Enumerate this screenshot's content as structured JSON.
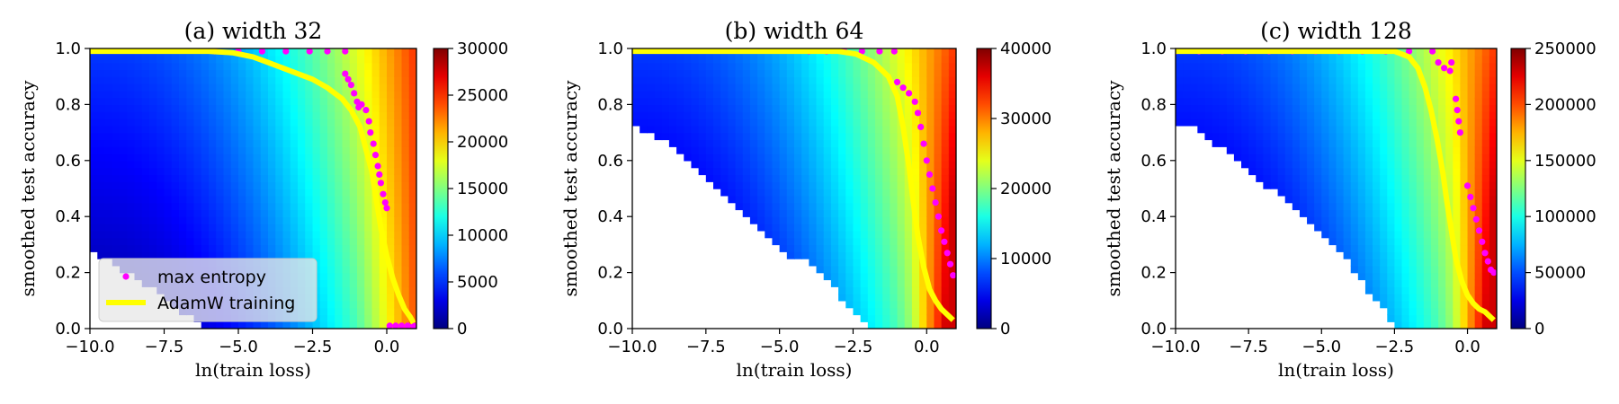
{
  "figure": {
    "panels": [
      {
        "title": "(a) width 32",
        "xlabel": "ln(train loss)",
        "ylabel": "smoothed test accuracy",
        "xlim": [
          -10.0,
          1.0
        ],
        "ylim": [
          0.0,
          1.0
        ],
        "xticks": [
          "−10.0",
          "−7.5",
          "−5.0",
          "−2.5",
          "0.0"
        ],
        "xtick_values": [
          -10.0,
          -7.5,
          -5.0,
          -2.5,
          0.0
        ],
        "yticks": [
          "0.0",
          "0.2",
          "0.4",
          "0.6",
          "0.8",
          "1.0"
        ],
        "ytick_values": [
          0.0,
          0.2,
          0.4,
          0.6,
          0.8,
          1.0
        ],
        "colorbar": {
          "min": 0,
          "max": 30000,
          "ticks": [
            "0",
            "5000",
            "10000",
            "15000",
            "20000",
            "25000",
            "30000"
          ],
          "tick_values": [
            0,
            5000,
            10000,
            15000,
            20000,
            25000,
            30000
          ]
        },
        "legend": {
          "placement": "lower-left",
          "entries": [
            "max entropy",
            "AdamW training"
          ]
        }
      },
      {
        "title": "(b) width 64",
        "xlabel": "ln(train loss)",
        "ylabel": "smoothed test accuracy",
        "xlim": [
          -10.0,
          1.0
        ],
        "ylim": [
          0.0,
          1.0
        ],
        "xticks": [
          "−10.0",
          "−7.5",
          "−5.0",
          "−2.5",
          "0.0"
        ],
        "xtick_values": [
          -10.0,
          -7.5,
          -5.0,
          -2.5,
          0.0
        ],
        "yticks": [
          "0.0",
          "0.2",
          "0.4",
          "0.6",
          "0.8",
          "1.0"
        ],
        "ytick_values": [
          0.0,
          0.2,
          0.4,
          0.6,
          0.8,
          1.0
        ],
        "colorbar": {
          "min": 0,
          "max": 40000,
          "ticks": [
            "0",
            "10000",
            "20000",
            "30000",
            "40000"
          ],
          "tick_values": [
            0,
            10000,
            20000,
            30000,
            40000
          ]
        }
      },
      {
        "title": "(c) width 128",
        "xlabel": "ln(train loss)",
        "ylabel": "smoothed test accuracy",
        "xlim": [
          -10.0,
          1.0
        ],
        "ylim": [
          0.0,
          1.0
        ],
        "xticks": [
          "−10.0",
          "−7.5",
          "−5.0",
          "−2.5",
          "0.0"
        ],
        "xtick_values": [
          -10.0,
          -7.5,
          -5.0,
          -2.5,
          0.0
        ],
        "yticks": [
          "0.0",
          "0.2",
          "0.4",
          "0.6",
          "0.8",
          "1.0"
        ],
        "ytick_values": [
          0.0,
          0.2,
          0.4,
          0.6,
          0.8,
          1.0
        ],
        "colorbar": {
          "min": 0,
          "max": 250000,
          "ticks": [
            "0",
            "50000",
            "100000",
            "150000",
            "200000",
            "250000"
          ],
          "tick_values": [
            0,
            50000,
            100000,
            150000,
            200000,
            250000
          ]
        }
      }
    ],
    "colors": {
      "max_entropy": "#ff00ff",
      "adamw": "#ffff00",
      "colormap": "jet"
    }
  },
  "chart_data": [
    {
      "type": "heatmap",
      "title": "(a) width 32",
      "xlabel": "ln(train loss)",
      "ylabel": "smoothed test accuracy",
      "xlim": [
        -10.0,
        1.0
      ],
      "ylim": [
        0.0,
        1.0
      ],
      "colorbar_range": [
        0,
        30000
      ],
      "coverage_boundary": [
        [
          -10.0,
          0.28
        ],
        [
          -8.0,
          0.15
        ],
        [
          -6.5,
          0.03
        ],
        [
          -6.0,
          0.0
        ]
      ],
      "series": [
        {
          "name": "max entropy",
          "kind": "scatter",
          "points": [
            [
              -5.8,
              0.99
            ],
            [
              -5.0,
              0.99
            ],
            [
              -4.2,
              0.99
            ],
            [
              -3.4,
              0.99
            ],
            [
              -2.6,
              0.99
            ],
            [
              -2.0,
              0.99
            ],
            [
              -1.4,
              0.99
            ],
            [
              -1.4,
              0.91
            ],
            [
              -1.3,
              0.89
            ],
            [
              -1.2,
              0.87
            ],
            [
              -1.1,
              0.84
            ],
            [
              -1.0,
              0.81
            ],
            [
              -0.95,
              0.79
            ],
            [
              -0.85,
              0.8
            ],
            [
              -0.7,
              0.78
            ],
            [
              -0.6,
              0.74
            ],
            [
              -0.55,
              0.7
            ],
            [
              -0.45,
              0.66
            ],
            [
              -0.38,
              0.62
            ],
            [
              -0.3,
              0.58
            ],
            [
              -0.25,
              0.55
            ],
            [
              -0.2,
              0.52
            ],
            [
              -0.12,
              0.48
            ],
            [
              -0.05,
              0.45
            ],
            [
              0.0,
              0.43
            ],
            [
              0.1,
              0.01
            ],
            [
              0.3,
              0.01
            ],
            [
              0.5,
              0.01
            ],
            [
              0.7,
              0.01
            ],
            [
              0.9,
              0.01
            ]
          ]
        },
        {
          "name": "AdamW training",
          "kind": "line",
          "points": [
            [
              -10.0,
              0.99
            ],
            [
              -6.0,
              0.99
            ],
            [
              -5.2,
              0.985
            ],
            [
              -4.5,
              0.97
            ],
            [
              -4.0,
              0.95
            ],
            [
              -3.5,
              0.93
            ],
            [
              -3.0,
              0.91
            ],
            [
              -2.5,
              0.89
            ],
            [
              -2.0,
              0.86
            ],
            [
              -1.5,
              0.82
            ],
            [
              -1.2,
              0.78
            ],
            [
              -0.9,
              0.72
            ],
            [
              -0.7,
              0.64
            ],
            [
              -0.5,
              0.56
            ],
            [
              -0.35,
              0.46
            ],
            [
              -0.2,
              0.36
            ],
            [
              0.0,
              0.26
            ],
            [
              0.2,
              0.18
            ],
            [
              0.4,
              0.12
            ],
            [
              0.6,
              0.07
            ],
            [
              0.8,
              0.04
            ],
            [
              0.9,
              0.02
            ]
          ]
        }
      ]
    },
    {
      "type": "heatmap",
      "title": "(b) width 64",
      "xlabel": "ln(train loss)",
      "ylabel": "smoothed test accuracy",
      "xlim": [
        -10.0,
        1.0
      ],
      "ylim": [
        0.0,
        1.0
      ],
      "colorbar_range": [
        0,
        40000
      ],
      "coverage_boundary": [
        [
          -10.0,
          0.73
        ],
        [
          -9.0,
          0.68
        ],
        [
          -8.0,
          0.59
        ],
        [
          -7.0,
          0.49
        ],
        [
          -6.0,
          0.38
        ],
        [
          -5.0,
          0.28
        ],
        [
          -4.5,
          0.25
        ],
        [
          -4.0,
          0.24
        ],
        [
          -3.5,
          0.2
        ],
        [
          -3.0,
          0.12
        ],
        [
          -2.5,
          0.05
        ],
        [
          -2.0,
          0.01
        ],
        [
          -1.6,
          0.0
        ]
      ],
      "series": [
        {
          "name": "max entropy",
          "kind": "scatter",
          "points": [
            [
              -4.0,
              0.99
            ],
            [
              -3.4,
              0.99
            ],
            [
              -2.8,
              0.99
            ],
            [
              -2.2,
              0.99
            ],
            [
              -1.6,
              0.99
            ],
            [
              -1.1,
              0.99
            ],
            [
              -1.0,
              0.88
            ],
            [
              -0.8,
              0.86
            ],
            [
              -0.6,
              0.84
            ],
            [
              -0.4,
              0.81
            ],
            [
              -0.3,
              0.77
            ],
            [
              -0.2,
              0.72
            ],
            [
              -0.1,
              0.66
            ],
            [
              0.0,
              0.6
            ],
            [
              0.1,
              0.55
            ],
            [
              0.2,
              0.5
            ],
            [
              0.3,
              0.45
            ],
            [
              0.4,
              0.4
            ],
            [
              0.5,
              0.35
            ],
            [
              0.6,
              0.31
            ],
            [
              0.7,
              0.27
            ],
            [
              0.8,
              0.23
            ],
            [
              0.9,
              0.19
            ]
          ]
        },
        {
          "name": "AdamW training",
          "kind": "line",
          "points": [
            [
              -10.0,
              0.99
            ],
            [
              -3.0,
              0.99
            ],
            [
              -2.4,
              0.98
            ],
            [
              -1.8,
              0.95
            ],
            [
              -1.3,
              0.9
            ],
            [
              -1.0,
              0.83
            ],
            [
              -0.8,
              0.72
            ],
            [
              -0.6,
              0.58
            ],
            [
              -0.45,
              0.45
            ],
            [
              -0.3,
              0.33
            ],
            [
              -0.1,
              0.22
            ],
            [
              0.1,
              0.14
            ],
            [
              0.3,
              0.1
            ],
            [
              0.5,
              0.07
            ],
            [
              0.7,
              0.05
            ],
            [
              0.9,
              0.03
            ]
          ]
        }
      ]
    },
    {
      "type": "heatmap",
      "title": "(c) width 128",
      "xlabel": "ln(train loss)",
      "ylabel": "smoothed test accuracy",
      "xlim": [
        -10.0,
        1.0
      ],
      "ylim": [
        0.0,
        1.0
      ],
      "colorbar_range": [
        0,
        250000
      ],
      "coverage_boundary": [
        [
          -10.0,
          0.74
        ],
        [
          -9.3,
          0.71
        ],
        [
          -8.5,
          0.65
        ],
        [
          -7.5,
          0.56
        ],
        [
          -6.5,
          0.48
        ],
        [
          -5.5,
          0.4
        ],
        [
          -4.5,
          0.3
        ],
        [
          -3.5,
          0.15
        ],
        [
          -3.0,
          0.08
        ],
        [
          -2.5,
          0.02
        ],
        [
          -2.2,
          0.0
        ]
      ],
      "series": [
        {
          "name": "max entropy",
          "kind": "scatter",
          "points": [
            [
              -10.0,
              0.99
            ],
            [
              -9.2,
              0.99
            ],
            [
              -8.4,
              0.99
            ],
            [
              -7.6,
              0.99
            ],
            [
              -6.8,
              0.99
            ],
            [
              -6.0,
              0.99
            ],
            [
              -5.2,
              0.99
            ],
            [
              -4.4,
              0.99
            ],
            [
              -3.6,
              0.99
            ],
            [
              -2.8,
              0.99
            ],
            [
              -2.0,
              0.99
            ],
            [
              -1.2,
              0.99
            ],
            [
              -1.0,
              0.95
            ],
            [
              -0.8,
              0.93
            ],
            [
              -0.6,
              0.92
            ],
            [
              -0.55,
              0.95
            ],
            [
              -0.4,
              0.82
            ],
            [
              -0.35,
              0.78
            ],
            [
              -0.3,
              0.74
            ],
            [
              -0.25,
              0.7
            ],
            [
              0.0,
              0.51
            ],
            [
              0.1,
              0.47
            ],
            [
              0.2,
              0.43
            ],
            [
              0.3,
              0.39
            ],
            [
              0.4,
              0.35
            ],
            [
              0.5,
              0.31
            ],
            [
              0.6,
              0.27
            ],
            [
              0.7,
              0.24
            ],
            [
              0.8,
              0.21
            ],
            [
              0.9,
              0.2
            ]
          ]
        },
        {
          "name": "AdamW training",
          "kind": "line",
          "points": [
            [
              -10.0,
              0.99
            ],
            [
              -2.5,
              0.99
            ],
            [
              -2.0,
              0.97
            ],
            [
              -1.7,
              0.93
            ],
            [
              -1.45,
              0.86
            ],
            [
              -1.25,
              0.78
            ],
            [
              -1.05,
              0.68
            ],
            [
              -0.85,
              0.56
            ],
            [
              -0.7,
              0.45
            ],
            [
              -0.55,
              0.35
            ],
            [
              -0.4,
              0.25
            ],
            [
              -0.2,
              0.17
            ],
            [
              0.0,
              0.12
            ],
            [
              0.2,
              0.09
            ],
            [
              0.4,
              0.07
            ],
            [
              0.6,
              0.06
            ],
            [
              0.8,
              0.04
            ],
            [
              0.9,
              0.03
            ]
          ]
        }
      ]
    }
  ]
}
